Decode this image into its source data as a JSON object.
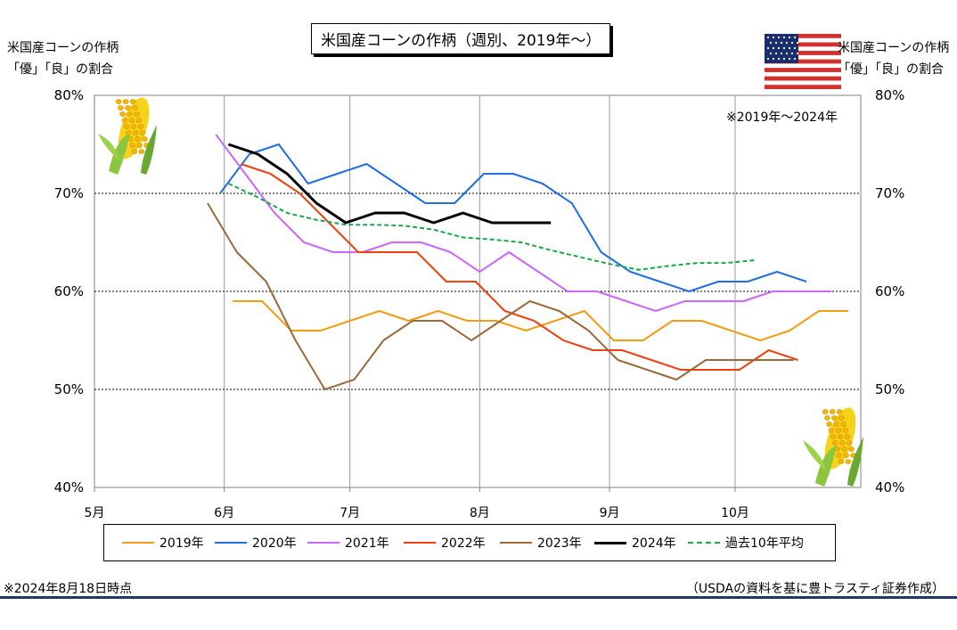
{
  "header": {
    "title": "米国産コーンの作柄（週別、2019年～）",
    "ylabel_left_line1": "米国産コーンの作柄",
    "ylabel_left_line2": "「優」「良」の割合",
    "ylabel_right_line1": "米国産コーンの作柄",
    "ylabel_right_line2": "「優」「良」の割合",
    "period_note": "※2019年～2024年"
  },
  "footer": {
    "left_note": "※2024年8月18日時点",
    "source": "（USDAの資料を基に豊トラスティ証券作成）"
  },
  "icons": [
    "us-flag-icon",
    "corn-icon",
    "corn-icon"
  ],
  "colors": {
    "2019": "#f39c12",
    "2020": "#1f6fe0",
    "2021": "#cc66ff",
    "2022": "#f04010",
    "2023": "#9c6a3a",
    "2024": "#000000",
    "avg": "#1aa84a"
  },
  "chart_data": {
    "type": "line",
    "title": "米国産コーンの作柄（週別、2019年～）",
    "ylabel": "米国産コーンの作柄「優」「良」の割合",
    "xlabel": "",
    "x_ticks": [
      "5月",
      "6月",
      "7月",
      "8月",
      "9月",
      "10月"
    ],
    "y_ticks": [
      "40%",
      "50%",
      "60%",
      "70%",
      "80%"
    ],
    "ylim": [
      40,
      80
    ],
    "xlim": [
      "05-01",
      "10-31"
    ],
    "grid": "horizontal dotted at 50/60/70, vertical gray at month starts",
    "legend_position": "bottom",
    "series": [
      {
        "name": "2019年",
        "key": "2019",
        "dash": false,
        "width": 2,
        "dates": [
          "06-03",
          "06-10",
          "06-17",
          "06-24",
          "07-01",
          "07-08",
          "07-15",
          "07-22",
          "07-29",
          "08-05",
          "08-12",
          "08-19",
          "08-26",
          "09-02",
          "09-09",
          "09-16",
          "09-23",
          "09-30",
          "10-07",
          "10-14",
          "10-21",
          "10-28",
          "11-04"
        ],
        "values": [
          59,
          59,
          56,
          56,
          57,
          58,
          57,
          58,
          57,
          57,
          56,
          57,
          58,
          55,
          55,
          57,
          57,
          56,
          55,
          56,
          58,
          58,
          null
        ]
      },
      {
        "name": "2020年",
        "key": "2020",
        "dash": false,
        "width": 2,
        "dates": [
          "05-31",
          "06-07",
          "06-14",
          "06-21",
          "06-28",
          "07-05",
          "07-12",
          "07-19",
          "07-26",
          "08-02",
          "08-09",
          "08-16",
          "08-23",
          "08-30",
          "09-06",
          "09-13",
          "09-20",
          "09-27",
          "10-04",
          "10-11",
          "10-18"
        ],
        "values": [
          70,
          74,
          75,
          71,
          72,
          73,
          71,
          69,
          69,
          72,
          72,
          71,
          69,
          64,
          62,
          61,
          60,
          61,
          61,
          62,
          61
        ]
      },
      {
        "name": "2021年",
        "key": "2021",
        "dash": false,
        "width": 2,
        "dates": [
          "05-30",
          "06-06",
          "06-13",
          "06-20",
          "06-27",
          "07-04",
          "07-11",
          "07-18",
          "07-25",
          "08-01",
          "08-08",
          "08-15",
          "08-22",
          "08-29",
          "09-05",
          "09-12",
          "09-19",
          "09-26",
          "10-03",
          "10-10",
          "10-17",
          "10-24"
        ],
        "values": [
          76,
          72,
          68,
          65,
          64,
          64,
          65,
          65,
          64,
          62,
          64,
          62,
          60,
          60,
          59,
          58,
          59,
          59,
          59,
          60,
          60,
          60
        ]
      },
      {
        "name": "2022年",
        "key": "2022",
        "dash": false,
        "width": 2,
        "dates": [
          "06-05",
          "06-12",
          "06-19",
          "06-26",
          "07-03",
          "07-10",
          "07-17",
          "07-24",
          "07-31",
          "08-07",
          "08-14",
          "08-21",
          "08-28",
          "09-04",
          "09-11",
          "09-18",
          "09-25",
          "10-02",
          "10-09",
          "10-16"
        ],
        "values": [
          73,
          72,
          70,
          67,
          64,
          64,
          64,
          61,
          61,
          58,
          57,
          55,
          54,
          54,
          53,
          52,
          52,
          52,
          54,
          53
        ]
      },
      {
        "name": "2023年",
        "key": "2023",
        "dash": false,
        "width": 2,
        "dates": [
          "05-28",
          "06-04",
          "06-11",
          "06-18",
          "06-25",
          "07-02",
          "07-09",
          "07-16",
          "07-23",
          "07-30",
          "08-06",
          "08-13",
          "08-20",
          "08-27",
          "09-03",
          "09-10",
          "09-17",
          "09-24",
          "10-01",
          "10-08",
          "10-15"
        ],
        "values": [
          69,
          64,
          61,
          55,
          50,
          51,
          55,
          57,
          57,
          55,
          57,
          59,
          58,
          56,
          53,
          52,
          51,
          53,
          53,
          53,
          53
        ]
      },
      {
        "name": "2024年",
        "key": "2024",
        "dash": false,
        "width": 3,
        "dates": [
          "06-02",
          "06-09",
          "06-16",
          "06-23",
          "06-30",
          "07-07",
          "07-14",
          "07-21",
          "07-28",
          "08-04",
          "08-11",
          "08-18"
        ],
        "values": [
          75,
          74,
          72,
          69,
          67,
          68,
          68,
          67,
          68,
          67,
          67,
          67
        ]
      },
      {
        "name": "過去10年平均",
        "key": "avg",
        "dash": true,
        "width": 2,
        "dates": [
          "06-02",
          "06-09",
          "06-16",
          "06-23",
          "06-30",
          "07-07",
          "07-14",
          "07-21",
          "07-28",
          "08-04",
          "08-11",
          "08-18",
          "08-25",
          "09-01",
          "09-08",
          "09-15",
          "09-22",
          "09-29",
          "10-06"
        ],
        "values": [
          71,
          69.6,
          68,
          67.3,
          66.8,
          66.8,
          66.7,
          66.3,
          65.5,
          65.3,
          65,
          64.2,
          63.5,
          62.8,
          62.2,
          62.6,
          62.9,
          62.9,
          63.2
        ]
      }
    ]
  }
}
